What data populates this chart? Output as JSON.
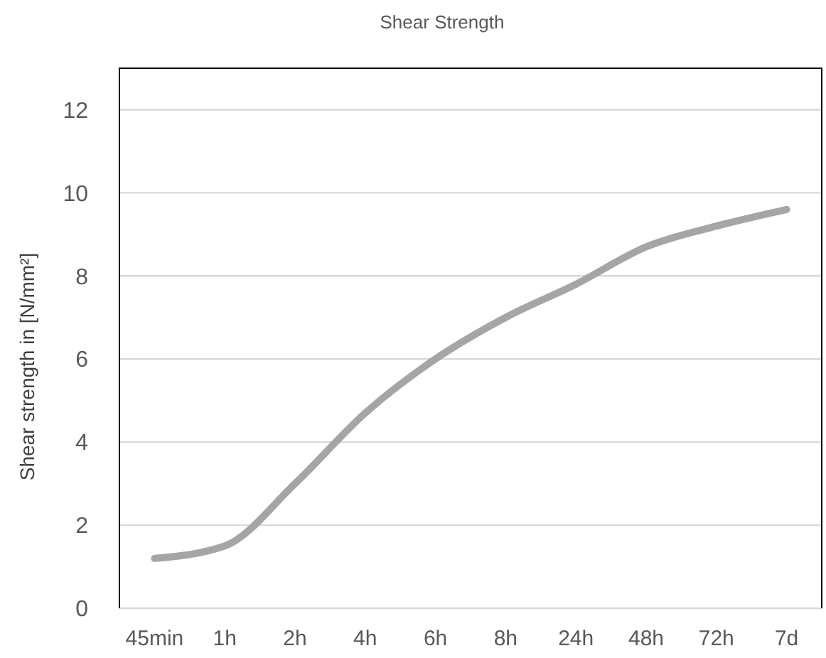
{
  "chart_data": {
    "type": "line",
    "title": "Shear Strength",
    "ylabel": "Shear strength in [N/mm²]",
    "categories": [
      "45min",
      "1h",
      "2h",
      "4h",
      "6h",
      "8h",
      "24h",
      "48h",
      "72h",
      "7d"
    ],
    "series": [
      {
        "color": "#a5a5a5",
        "values": [
          1.2,
          1.5,
          3.0,
          4.7,
          6.0,
          7.0,
          7.8,
          8.7,
          9.2,
          9.6
        ]
      }
    ],
    "ylim": [
      0,
      13
    ],
    "yticks": [
      0,
      2,
      4,
      6,
      8,
      10,
      12
    ],
    "grid": "y",
    "marker": "none",
    "line_style": "solid"
  }
}
